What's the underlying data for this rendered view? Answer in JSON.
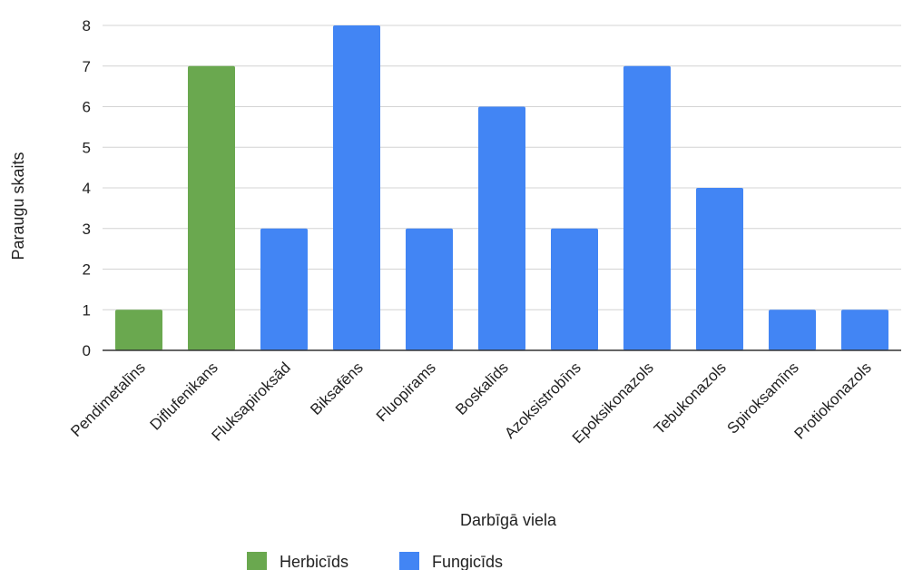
{
  "chart_data": {
    "type": "bar",
    "title": "",
    "xlabel": "Darbīgā viela",
    "ylabel": "Paraugu skaits",
    "ylim": [
      0,
      8
    ],
    "yticks": [
      0,
      1,
      2,
      3,
      4,
      5,
      6,
      7,
      8
    ],
    "grid": true,
    "legend_position": "bottom",
    "categories": [
      "Pendimetalīns",
      "Diflufenikans",
      "Fluksapiroksād",
      "Biksafēns",
      "Fluopirams",
      "Boskalīds",
      "Azoksistrobīns",
      "Epoksikonazols",
      "Tebukonazols",
      "Spiroksamīns",
      "Protiokonazols"
    ],
    "values": [
      1,
      7,
      3,
      8,
      3,
      6,
      3,
      7,
      4,
      1,
      1
    ],
    "groups": [
      "Herbicīds",
      "Herbicīds",
      "Fungicīds",
      "Fungicīds",
      "Fungicīds",
      "Fungicīds",
      "Fungicīds",
      "Fungicīds",
      "Fungicīds",
      "Fungicīds",
      "Fungicīds"
    ],
    "series": [
      {
        "name": "Herbicīds",
        "color": "#6aa84f"
      },
      {
        "name": "Fungicīds",
        "color": "#4285f4"
      }
    ]
  }
}
